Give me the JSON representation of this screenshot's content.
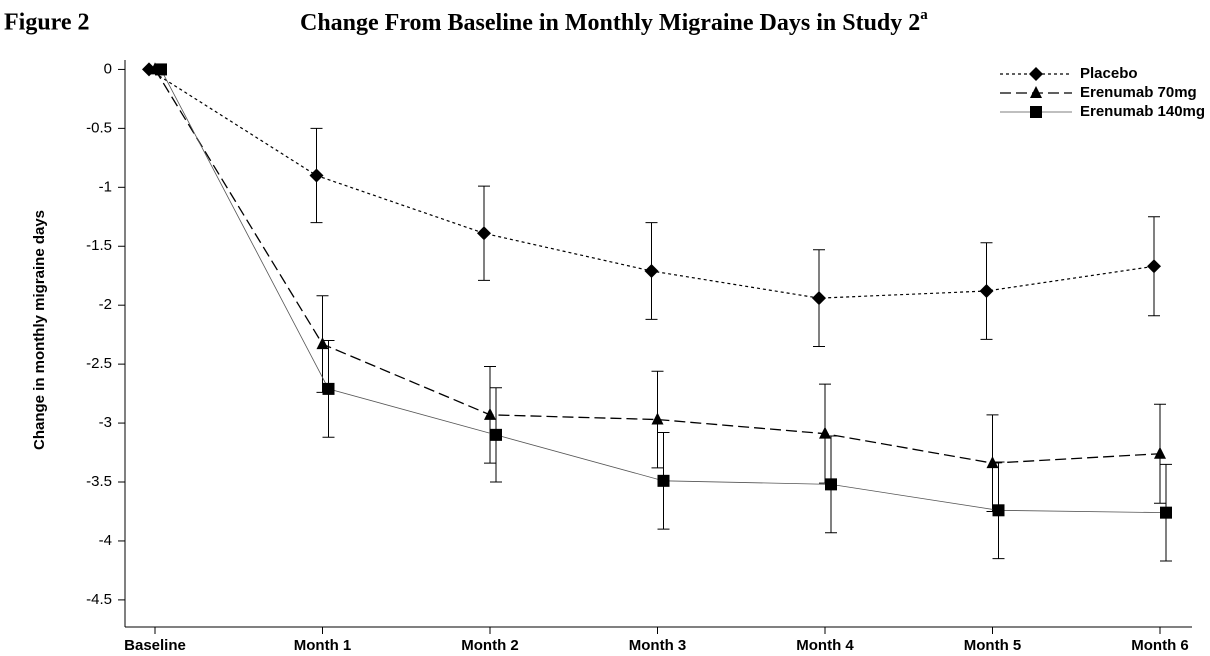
{
  "chart_data": {
    "type": "line",
    "figure_label": "Figure 2",
    "title": "Change From Baseline in Monthly Migraine Days in Study 2",
    "title_superscript": "a",
    "y_label": "Change in monthly migraine days",
    "categories": [
      "Baseline",
      "Month 1",
      "Month 2",
      "Month 3",
      "Month 4",
      "Month 5",
      "Month 6"
    ],
    "series": [
      {
        "name": "Placebo",
        "color": "#000000",
        "line_style": "dotted",
        "marker": "diamond",
        "values": [
          0,
          -0.9,
          -1.39,
          -1.71,
          -1.94,
          -1.88,
          -1.67
        ],
        "errors": [
          null,
          0.4,
          0.4,
          0.41,
          0.41,
          0.41,
          0.42
        ]
      },
      {
        "name": "Erenumab 70mg",
        "color": "#000000",
        "line_style": "dashed",
        "marker": "triangle",
        "values": [
          0,
          -2.33,
          -2.93,
          -2.97,
          -3.09,
          -3.34,
          -3.26
        ],
        "errors": [
          null,
          0.41,
          0.41,
          0.41,
          0.42,
          0.41,
          0.42
        ]
      },
      {
        "name": "Erenumab 140mg",
        "color": "#000000",
        "line_style": "solid",
        "marker": "square",
        "values": [
          0,
          -2.71,
          -3.1,
          -3.49,
          -3.52,
          -3.74,
          -3.76
        ],
        "errors": [
          null,
          0.41,
          0.4,
          0.41,
          0.41,
          0.41,
          0.41
        ]
      }
    ],
    "ylim": [
      -4.73,
      0.08
    ],
    "yticks": [
      0,
      -0.5,
      -1,
      -1.5,
      -2,
      -2.5,
      -3,
      -3.5,
      -4,
      -4.5
    ],
    "legend": "top-right"
  }
}
